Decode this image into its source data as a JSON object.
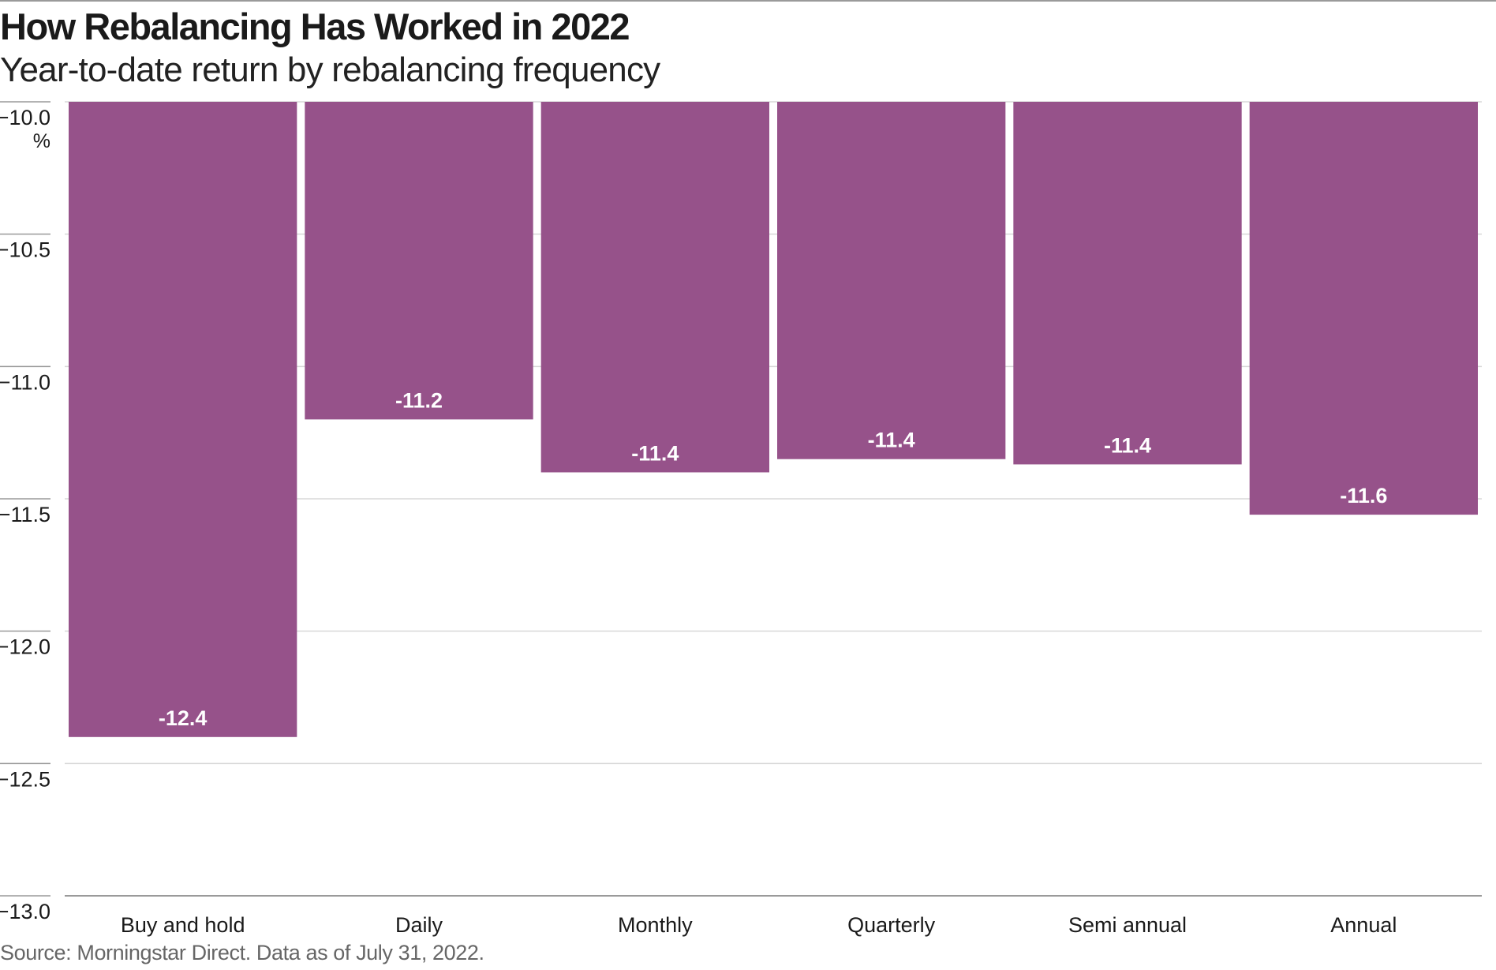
{
  "header": {
    "title": "How Rebalancing Has Worked in 2022",
    "subtitle": "Year-to-date return by rebalancing frequency"
  },
  "footer": {
    "source": "Source: Morningstar Direct. Data as of July 31, 2022."
  },
  "colors": {
    "bar": "#96528a",
    "grid": "#d8d8d8",
    "axis": "#9a9a9a"
  },
  "chart_data": {
    "type": "bar",
    "title": "How Rebalancing Has Worked in 2022",
    "subtitle": "Year-to-date return by rebalancing frequency",
    "xlabel": "",
    "ylabel": "",
    "y_unit": "%",
    "ylim": [
      -13.0,
      -10.0
    ],
    "y_ticks": [
      -10.0,
      -10.5,
      -11.0,
      -11.5,
      -12.0,
      -12.5,
      -13.0
    ],
    "y_tick_labels": [
      "−10.0",
      "−10.5",
      "−11.0",
      "−11.5",
      "−12.0",
      "−12.5",
      "−13.0"
    ],
    "grid": true,
    "bars_hang_from_top": true,
    "categories": [
      "Buy and hold",
      "Daily",
      "Monthly",
      "Quarterly",
      "Semi annual",
      "Annual"
    ],
    "values": [
      -12.4,
      -11.2,
      -11.4,
      -11.35,
      -11.37,
      -11.56
    ],
    "data_labels": [
      "-12.4",
      "-11.2",
      "-11.4",
      "-11.4",
      "-11.4",
      "-11.6"
    ]
  }
}
